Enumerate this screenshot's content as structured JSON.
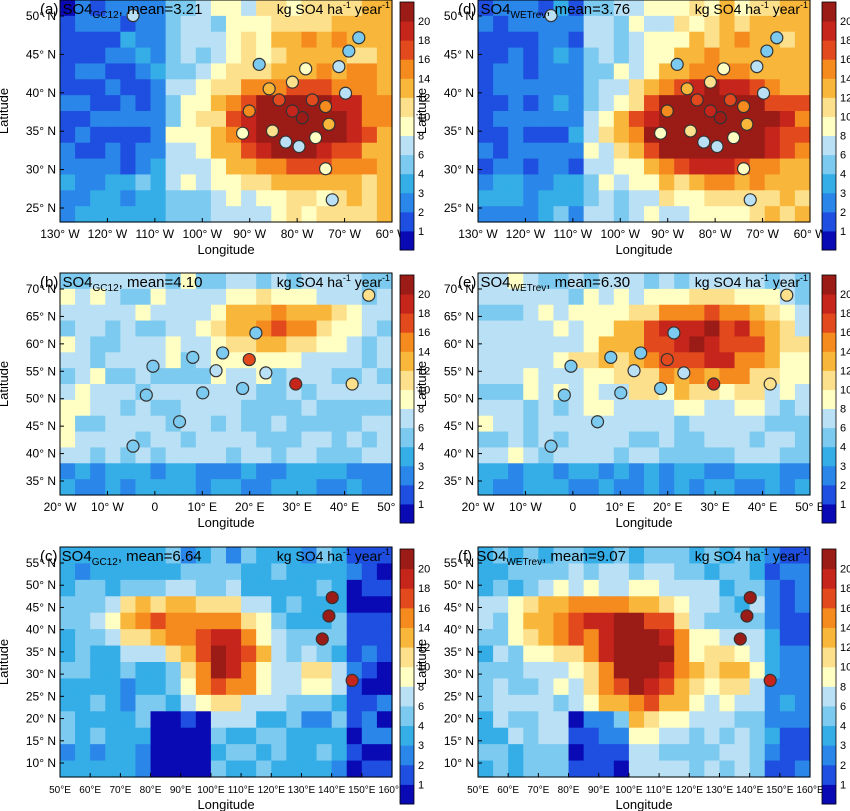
{
  "figure": {
    "colorbar_ticks": [
      "1",
      "2",
      "3",
      "4",
      "6",
      "8",
      "10",
      "12",
      "14",
      "16",
      "18",
      "20"
    ],
    "colorbar_colors": [
      "#0a0ab5",
      "#1e4fe0",
      "#2a86e8",
      "#35aee8",
      "#7ccaef",
      "#b9e0f4",
      "#ffffc4",
      "#fde08c",
      "#f8b73a",
      "#f58a1f",
      "#e24a1e",
      "#c6251c",
      "#9b1b17"
    ],
    "obs_edge_color": "#333333"
  },
  "chart_data": [
    {
      "type": "heatmap",
      "panel": "a",
      "title_prefix": "(a) SO4",
      "title_sub": "GC12",
      "title_mean": ", mean=3.21",
      "units": "kg SO4 ha",
      "units_sup1": "-1",
      "units_mid": " year",
      "units_sup2": "-1",
      "xlabel": "Longitude",
      "ylabel": "Latitude",
      "region": "North America",
      "xlim": [
        -130,
        -60
      ],
      "ylim": [
        22,
        53
      ],
      "x_ticks": [
        "130° W",
        "120° W",
        "110° W",
        "100° W",
        "90° W",
        "80° W",
        "70° W",
        "60° W"
      ],
      "y_ticks": [
        "50° N",
        "45° N",
        "40° N",
        "35° N",
        "30° N",
        "25° N"
      ],
      "colorbar_ticks": [
        "1",
        "2",
        "3",
        "4",
        "6",
        "8",
        "10",
        "12",
        "14",
        "16",
        "18",
        "20"
      ]
    },
    {
      "type": "heatmap",
      "panel": "d",
      "title_prefix": "(d) SO4",
      "title_sub": "WETrev",
      "title_mean": ", mean=3.76",
      "units": "kg SO4 ha",
      "units_sup1": "-1",
      "units_mid": " year",
      "units_sup2": "-1",
      "xlabel": "Longitude",
      "ylabel": "Latitude",
      "region": "North America",
      "xlim": [
        -130,
        -60
      ],
      "ylim": [
        22,
        53
      ],
      "x_ticks": [
        "130° W",
        "120° W",
        "110° W",
        "100° W",
        "90° W",
        "80° W",
        "70° W",
        "60° W"
      ],
      "y_ticks": [
        "50° N",
        "45° N",
        "40° N",
        "35° N",
        "30° N",
        "25° N"
      ],
      "colorbar_ticks": [
        "1",
        "2",
        "3",
        "4",
        "6",
        "8",
        "10",
        "12",
        "14",
        "16",
        "18",
        "20"
      ]
    },
    {
      "type": "heatmap",
      "panel": "b",
      "title_prefix": "(b) SO4",
      "title_sub": "GC12",
      "title_mean": ", mean=4.10",
      "units": "kg SO4 ha",
      "units_sup1": "-1",
      "units_mid": " year",
      "units_sup2": "-1",
      "xlabel": "Longitude",
      "ylabel": "Latitude",
      "region": "Europe",
      "xlim": [
        -20,
        55
      ],
      "ylim": [
        34,
        72
      ],
      "x_ticks": [
        "20° W",
        "10° W",
        "0",
        "10° E",
        "20° E",
        "30° E",
        "40° E",
        "50° E"
      ],
      "y_ticks": [
        "70° N",
        "65° N",
        "60° N",
        "55° N",
        "50° N",
        "45° N",
        "40° N",
        "35° N"
      ],
      "colorbar_ticks": [
        "1",
        "2",
        "3",
        "4",
        "6",
        "8",
        "10",
        "12",
        "14",
        "16",
        "18",
        "20"
      ]
    },
    {
      "type": "heatmap",
      "panel": "e",
      "title_prefix": "(e) SO4",
      "title_sub": "WETrev",
      "title_mean": ", mean=6.30",
      "units": "kg SO4 ha",
      "units_sup1": "-1",
      "units_mid": " year",
      "units_sup2": "-1",
      "xlabel": "Longitude",
      "ylabel": "Latitude",
      "region": "Europe",
      "xlim": [
        -20,
        55
      ],
      "ylim": [
        34,
        72
      ],
      "x_ticks": [
        "20° W",
        "10° W",
        "0",
        "10° E",
        "20° E",
        "30° E",
        "40° E",
        "50° E"
      ],
      "y_ticks": [
        "70° N",
        "65° N",
        "60° N",
        "55° N",
        "50° N",
        "45° N",
        "40° N",
        "35° N"
      ],
      "colorbar_ticks": [
        "1",
        "2",
        "3",
        "4",
        "6",
        "8",
        "10",
        "12",
        "14",
        "16",
        "18",
        "20"
      ]
    },
    {
      "type": "heatmap",
      "panel": "c",
      "title_prefix": "(c) SO4",
      "title_sub": "GC12",
      "title_mean": ", mean=6.64",
      "units": "kg SO4 ha",
      "units_sup1": "-1",
      "units_mid": " year",
      "units_sup2": "-1",
      "xlabel": "Longitude",
      "ylabel": "Latitude",
      "region": "East Asia",
      "xlim": [
        45,
        162
      ],
      "ylim": [
        5,
        58
      ],
      "x_ticks": [
        "50°E",
        "60°E",
        "70°E",
        "80°E",
        "90°E",
        "100°E",
        "110°E",
        "120°E",
        "130°E",
        "140°E",
        "150°E",
        "160°E"
      ],
      "y_ticks": [
        "55° N",
        "50° N",
        "45° N",
        "40° N",
        "35° N",
        "30° N",
        "25° N",
        "20° N",
        "15° N",
        "10° N"
      ],
      "colorbar_ticks": [
        "1",
        "2",
        "3",
        "4",
        "6",
        "8",
        "10",
        "12",
        "14",
        "16",
        "18",
        "20"
      ]
    },
    {
      "type": "heatmap",
      "panel": "f",
      "title_prefix": "(f) SO4",
      "title_sub": "WETrev",
      "title_mean": ", mean=9.07",
      "units": "kg SO4 ha",
      "units_sup1": "-1",
      "units_mid": " year",
      "units_sup2": "-1",
      "xlabel": "Longitude",
      "ylabel": "Latitude",
      "region": "East Asia",
      "xlim": [
        45,
        162
      ],
      "ylim": [
        5,
        58
      ],
      "x_ticks": [
        "50°E",
        "60°E",
        "70°E",
        "80°E",
        "90°E",
        "100°E",
        "110°E",
        "120°E",
        "130°E",
        "140°E",
        "150°E",
        "160°E"
      ],
      "y_ticks": [
        "55° N",
        "50° N",
        "45° N",
        "40° N",
        "35° N",
        "30° N",
        "25° N",
        "20° N",
        "15° N",
        "10° N"
      ],
      "colorbar_ticks": [
        "1",
        "2",
        "3",
        "4",
        "6",
        "8",
        "10",
        "12",
        "14",
        "16",
        "18",
        "20"
      ]
    }
  ]
}
